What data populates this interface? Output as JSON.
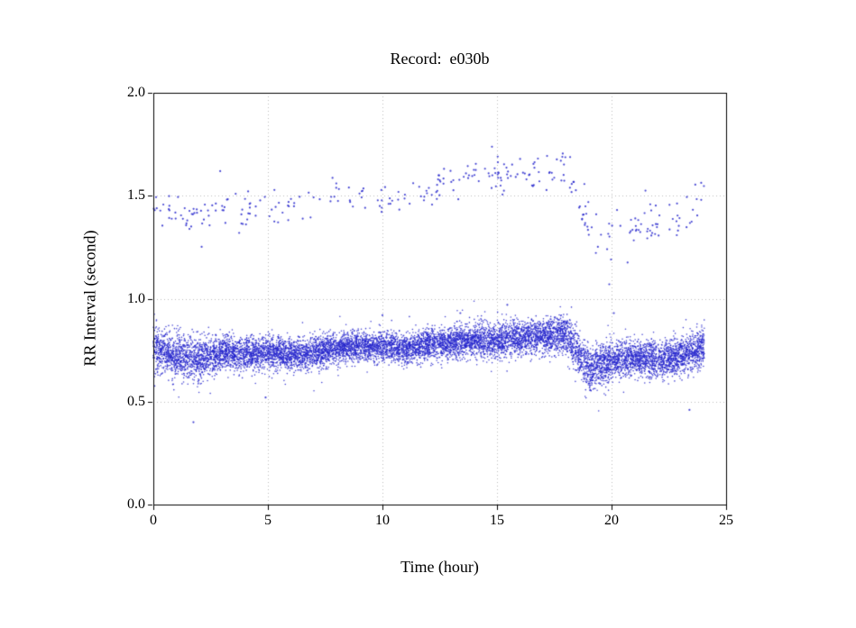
{
  "chart_data": {
    "type": "scatter",
    "title": "Record:  e030b",
    "xlabel": "Time (hour)",
    "ylabel": "RR Interval (second)",
    "xlim": [
      0,
      25
    ],
    "ylim": [
      0.0,
      2.0
    ],
    "xtick_values": [
      0,
      5,
      10,
      15,
      20,
      25
    ],
    "xtick_labels": [
      "0",
      "5",
      "10",
      "15",
      "20",
      "25"
    ],
    "ytick_values": [
      0.0,
      0.5,
      1.0,
      1.5,
      2.0
    ],
    "ytick_labels": [
      "0.0",
      "0.5",
      "1.0",
      "1.5",
      "2.0"
    ],
    "grid_x": [
      5,
      10,
      15,
      20
    ],
    "grid_y": [
      0.5,
      1.0,
      1.5
    ],
    "grid_on": true,
    "legend": "none",
    "marker_color": "#2727cc",
    "axis_color": "#000000",
    "grid_color": "#bbbbbb",
    "x_data_range": [
      0,
      24.05
    ],
    "seed": 42,
    "series": [
      {
        "name": "rr-interval-main-band",
        "kind": "dense-band",
        "points_per_hour": 450,
        "anchor_hours": [
          0,
          1,
          2,
          3,
          4,
          5,
          6,
          7,
          8,
          9,
          10,
          11,
          12,
          13,
          14,
          15,
          16,
          17,
          18,
          19,
          20,
          21,
          22,
          23,
          24
        ],
        "center_sec": [
          0.76,
          0.72,
          0.71,
          0.74,
          0.73,
          0.74,
          0.73,
          0.74,
          0.76,
          0.77,
          0.77,
          0.76,
          0.78,
          0.79,
          0.8,
          0.8,
          0.81,
          0.82,
          0.83,
          0.66,
          0.7,
          0.72,
          0.71,
          0.72,
          0.76
        ],
        "sigma_sec": [
          0.05,
          0.05,
          0.05,
          0.04,
          0.04,
          0.04,
          0.04,
          0.04,
          0.035,
          0.035,
          0.035,
          0.035,
          0.035,
          0.04,
          0.04,
          0.045,
          0.04,
          0.04,
          0.045,
          0.05,
          0.045,
          0.04,
          0.045,
          0.04,
          0.05
        ],
        "dip_prob": 0.06,
        "dip_depth_sec": [
          0.12,
          0.12,
          0.12,
          0.1,
          0.08,
          0.08,
          0.08,
          0.1,
          0.06,
          0.06,
          0.06,
          0.06,
          0.06,
          0.06,
          0.06,
          0.08,
          0.06,
          0.06,
          0.08,
          0.14,
          0.12,
          0.08,
          0.1,
          0.08,
          0.1
        ],
        "spike_prob": 0.012,
        "spike_max_sec": 0.1
      },
      {
        "name": "rr-interval-long-beats",
        "kind": "sparse-band",
        "points_per_hour": 13,
        "anchor_hours": [
          0,
          1,
          2,
          3,
          4,
          5,
          6,
          7,
          8,
          9,
          10,
          11,
          12,
          13,
          14,
          15,
          16,
          17,
          18,
          19,
          20,
          21,
          22,
          23,
          24
        ],
        "center_sec": [
          1.47,
          1.44,
          1.38,
          1.45,
          1.42,
          1.44,
          1.43,
          1.46,
          1.5,
          1.51,
          1.48,
          1.51,
          1.53,
          1.58,
          1.6,
          1.6,
          1.62,
          1.6,
          1.65,
          1.32,
          1.3,
          1.35,
          1.38,
          1.36,
          1.49
        ],
        "sigma_sec": [
          0.04,
          0.05,
          0.06,
          0.05,
          0.04,
          0.04,
          0.04,
          0.04,
          0.03,
          0.03,
          0.04,
          0.04,
          0.04,
          0.04,
          0.04,
          0.05,
          0.04,
          0.05,
          0.04,
          0.08,
          0.08,
          0.07,
          0.06,
          0.06,
          0.04
        ]
      }
    ],
    "outliers": [
      [
        1.75,
        0.4
      ],
      [
        4.9,
        0.52
      ],
      [
        23.4,
        0.46
      ],
      [
        13.4,
        0.93
      ],
      [
        15.45,
        0.97
      ],
      [
        20.1,
        0.93
      ],
      [
        19.9,
        1.07
      ],
      [
        10.0,
        0.92
      ]
    ]
  }
}
